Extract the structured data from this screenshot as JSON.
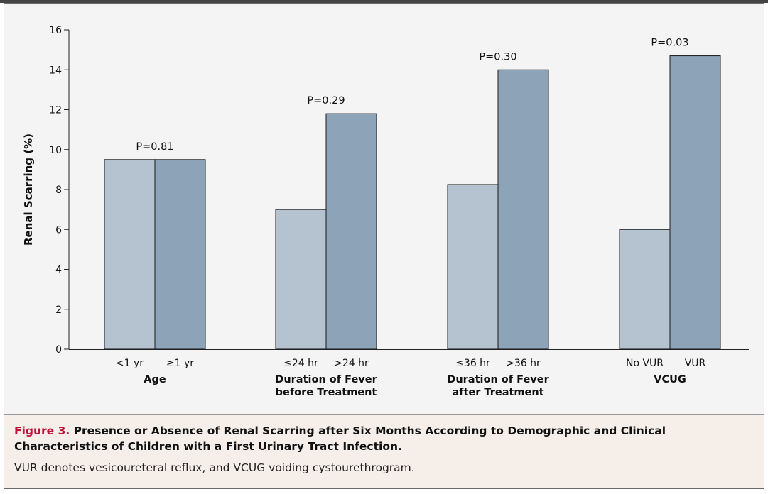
{
  "chart_data": {
    "type": "bar",
    "ylabel": "Renal Scarring (%)",
    "ylim": [
      0,
      16
    ],
    "yticks": [
      0,
      2,
      4,
      6,
      8,
      10,
      12,
      14,
      16
    ],
    "grid": false,
    "colors": {
      "light": "#b5c3d0",
      "dark": "#8da4b8"
    },
    "groups": [
      {
        "name": "Age",
        "name_lines": [
          "Age"
        ],
        "p_value": "P=0.81",
        "categories": [
          "<1 yr",
          "≥1 yr"
        ],
        "values": [
          9.5,
          9.5
        ]
      },
      {
        "name": "Duration of Fever before Treatment",
        "name_lines": [
          "Duration of Fever",
          "before Treatment"
        ],
        "p_value": "P=0.29",
        "categories": [
          "≤24 hr",
          ">24 hr"
        ],
        "values": [
          7.0,
          11.8
        ]
      },
      {
        "name": "Duration of Fever after Treatment",
        "name_lines": [
          "Duration of Fever",
          "after Treatment"
        ],
        "p_value": "P=0.30",
        "categories": [
          "≤36 hr",
          ">36 hr"
        ],
        "values": [
          8.25,
          14.0
        ]
      },
      {
        "name": "VCUG",
        "name_lines": [
          "VCUG"
        ],
        "p_value": "P=0.03",
        "categories": [
          "No VUR",
          "VUR"
        ],
        "values": [
          6.0,
          14.7
        ]
      }
    ]
  },
  "caption": {
    "figure_label": "Figure 3.",
    "title": "Presence or Absence of Renal Scarring after Six Months According to Demographic and Clinical Characteristics of Children with a First Urinary Tract Infection.",
    "note": "VUR denotes vesicoureteral reflux, and VCUG voiding cystourethrogram."
  }
}
